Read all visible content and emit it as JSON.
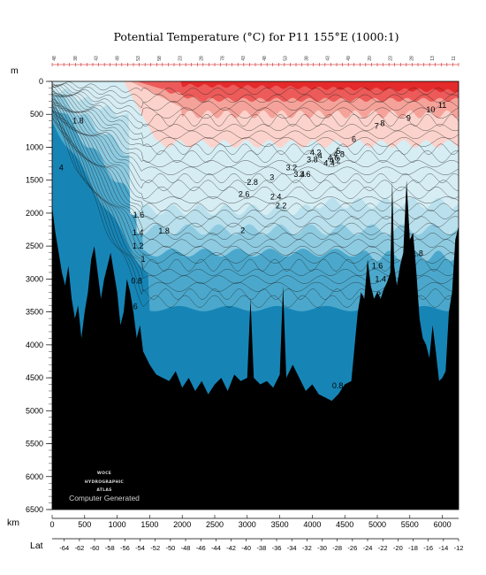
{
  "chart_data": {
    "type": "heatmap",
    "title": "Potential Temperature (°C) for P11 155°E (1000:1)",
    "depth_unit": "m",
    "distance_unit": "km",
    "lat_label": "Lat",
    "depth_ticks": [
      0,
      500,
      1000,
      1500,
      2000,
      2500,
      3000,
      3500,
      4000,
      4500,
      5000,
      5500,
      6000,
      6500
    ],
    "depth_range": [
      0,
      6500
    ],
    "distance_ticks": [
      0,
      500,
      1000,
      1500,
      2000,
      2500,
      3000,
      3500,
      4000,
      4500,
      5000,
      5500,
      6000
    ],
    "distance_range": [
      0,
      6250
    ],
    "lat_ticks": [
      -64,
      -62,
      -60,
      -58,
      -56,
      -54,
      -52,
      -50,
      -48,
      -46,
      -44,
      -42,
      -40,
      -38,
      -36,
      -34,
      -32,
      -30,
      -28,
      -26,
      -24,
      -22,
      -20,
      -18,
      -16,
      -14,
      -12
    ],
    "lat_range": [
      -65.6,
      -12
    ],
    "station_numbers": [
      "48",
      "38",
      "43",
      "49",
      "53",
      "58",
      "23",
      "28",
      "78",
      "43",
      "48",
      "53",
      "38",
      "43",
      "49",
      "20",
      "23",
      "28",
      "13",
      "11"
    ],
    "contour_levels": [
      0.6,
      0.8,
      1,
      1.2,
      1.4,
      1.6,
      1.8,
      2,
      2.2,
      2.4,
      2.6,
      3,
      3.2,
      3.4,
      3.6,
      3.8,
      4,
      4.2,
      4.4,
      4.6,
      4.8,
      5,
      6,
      7,
      8,
      9,
      10,
      11
    ],
    "contour_labels": [
      {
        "text": "11",
        "x": 6000,
        "depth": 400
      },
      {
        "text": "10",
        "x": 5820,
        "depth": 470
      },
      {
        "text": "9",
        "x": 5480,
        "depth": 600
      },
      {
        "text": "8",
        "x": 5080,
        "depth": 680
      },
      {
        "text": "7",
        "x": 4990,
        "depth": 720
      },
      {
        "text": "6",
        "x": 4640,
        "depth": 920
      },
      {
        "text": "5",
        "x": 4400,
        "depth": 1100
      },
      {
        "text": "4.8",
        "x": 4410,
        "depth": 1150
      },
      {
        "text": "4.6",
        "x": 4320,
        "depth": 1200
      },
      {
        "text": "4.4",
        "x": 4260,
        "depth": 1280
      },
      {
        "text": "4.2",
        "x": 4050,
        "depth": 1120
      },
      {
        "text": "4.2",
        "x": 4350,
        "depth": 1240
      },
      {
        "text": "4",
        "x": 4120,
        "depth": 1170
      },
      {
        "text": "3.8",
        "x": 4000,
        "depth": 1230
      },
      {
        "text": "4",
        "x": 140,
        "depth": 1350
      },
      {
        "text": "3.2",
        "x": 3680,
        "depth": 1350
      },
      {
        "text": "3.4",
        "x": 3800,
        "depth": 1450
      },
      {
        "text": "3.6",
        "x": 3890,
        "depth": 1450
      },
      {
        "text": "3",
        "x": 3380,
        "depth": 1500
      },
      {
        "text": "2.8",
        "x": 3080,
        "depth": 1570
      },
      {
        "text": "2.6",
        "x": 2950,
        "depth": 1750
      },
      {
        "text": "2.4",
        "x": 3440,
        "depth": 1790
      },
      {
        "text": "2.2",
        "x": 3520,
        "depth": 1930
      },
      {
        "text": "2",
        "x": 2930,
        "depth": 2300
      },
      {
        "text": "1.8",
        "x": 400,
        "depth": 640
      },
      {
        "text": "1.8",
        "x": 1720,
        "depth": 2310
      },
      {
        "text": "1.8",
        "x": 5620,
        "depth": 2650
      },
      {
        "text": "1.6",
        "x": 1330,
        "depth": 2070
      },
      {
        "text": "1.6",
        "x": 5000,
        "depth": 2840
      },
      {
        "text": "1.4",
        "x": 1320,
        "depth": 2340
      },
      {
        "text": "1.4",
        "x": 5050,
        "depth": 3040
      },
      {
        "text": "1.2",
        "x": 1320,
        "depth": 2540
      },
      {
        "text": "1",
        "x": 1400,
        "depth": 2740
      },
      {
        "text": "2",
        "x": 5020,
        "depth": 3280
      },
      {
        "text": "0.8",
        "x": 1300,
        "depth": 3070
      },
      {
        "text": "0.6",
        "x": 1230,
        "depth": 3460
      },
      {
        "text": "0.8",
        "x": 4390,
        "depth": 4660
      }
    ],
    "legend": "none",
    "grid": false
  },
  "watermark": {
    "line1": "WOCE",
    "line2": "HYDROGRAPHIC",
    "line3": "ATLAS",
    "generated": "Computer Generated"
  },
  "colors": {
    "deep_cold": "#1685b6",
    "cold": "#4ba8cc",
    "cool": "#8ecbe1",
    "mid": "#b9e0ec",
    "mild": "#d6edf4",
    "warmish": "#fbd3cc",
    "warm": "#f5a39a",
    "hot": "#ec5b59",
    "hottest": "#e42a2b",
    "bottom": "#000000"
  }
}
